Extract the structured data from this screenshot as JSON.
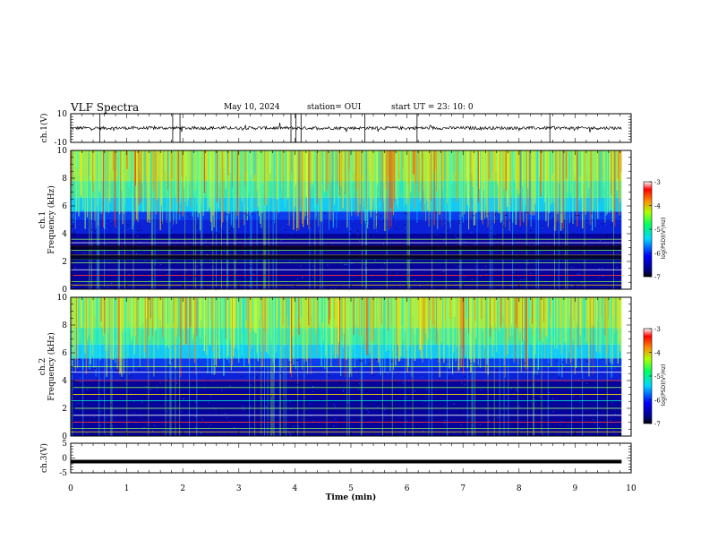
{
  "header": {
    "title": "VLF Spectra",
    "date": "May 10, 2024",
    "station": "station= OUI",
    "start": "start  UT  =   23: 10: 0"
  },
  "chart_data": [
    {
      "type": "line",
      "panel": "ch1-waveform",
      "ylabel": "ch.1(V)",
      "ylim": [
        -10,
        10
      ],
      "yticks": [
        10,
        -10
      ],
      "baseline": 0,
      "x_range": [
        0,
        9.83
      ],
      "spikes_min": [
        0.52,
        1.82,
        1.95,
        3.93,
        4.02,
        4.11,
        5.25,
        6.18,
        8.55
      ]
    },
    {
      "type": "heatmap",
      "panel": "ch1-spectrogram",
      "ylabel": "ch.1\nFrequency (kHz)",
      "xlim": [
        0,
        10
      ],
      "ylim": [
        0,
        10
      ],
      "yticks": [
        0,
        2,
        4,
        6,
        8,
        10
      ],
      "x_range": [
        0,
        9.83
      ],
      "colorbar": {
        "label": "log(PSD)(V²/Hz)",
        "ticks": [
          -3,
          -4,
          -5,
          -6,
          -7
        ],
        "range": [
          -7,
          -3
        ]
      },
      "noise_floor_khz": 5.6,
      "lines_khz": [
        0.3,
        0.55,
        1.0,
        1.4,
        1.9,
        2.15,
        2.45,
        2.8,
        3.1,
        3.35,
        3.6
      ]
    },
    {
      "type": "heatmap",
      "panel": "ch2-spectrogram",
      "ylabel": "ch.2\nFrequency (kHz)",
      "xlim": [
        0,
        10
      ],
      "ylim": [
        0,
        10
      ],
      "yticks": [
        0,
        2,
        4,
        6,
        8,
        10
      ],
      "x_range": [
        0,
        9.83
      ],
      "colorbar": {
        "label": "log(PSD)(V²/Hz)",
        "ticks": [
          -3,
          -4,
          -5,
          -6,
          -7
        ],
        "range": [
          -7,
          -3
        ]
      },
      "noise_floor_khz": 5.6,
      "lines_khz": [
        0.3,
        0.55,
        1.0,
        1.5,
        2.0,
        2.55,
        3.0,
        3.5,
        4.0,
        4.6,
        5.0
      ]
    },
    {
      "type": "line",
      "panel": "ch3-waveform",
      "ylabel": "ch.3(V)",
      "xlabel": "Time  (min)",
      "ylim": [
        -5,
        5
      ],
      "yticks": [
        5,
        0,
        -5
      ],
      "xticks": [
        0,
        1,
        2,
        3,
        4,
        5,
        6,
        7,
        8,
        9,
        10
      ],
      "baseline": -1.2,
      "x_range": [
        0,
        9.83
      ]
    }
  ]
}
